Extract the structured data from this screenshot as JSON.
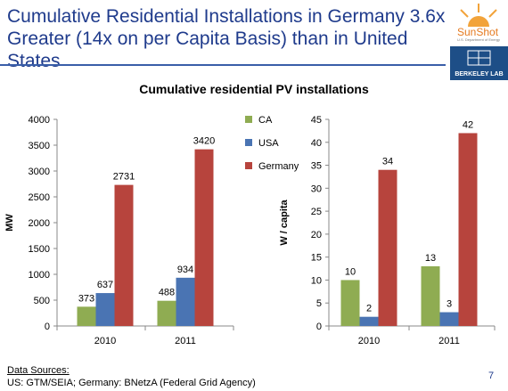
{
  "slide": {
    "title": "Cumulative Residential Installations in Germany 3.6x Greater (14x on per Capita Basis) than in United States",
    "logo_main": "SunShot",
    "logo_sub": "U.S. Department of Energy",
    "logo_lab": "BERKELEY LAB",
    "page_number": "7"
  },
  "chart_heading": "Cumulative residential PV installations",
  "sources": {
    "title": "Data Sources:",
    "text": "US: GTM/SEIA; Germany: BNetzA (Federal Grid Agency)"
  },
  "colors": {
    "CA": "#8fac52",
    "USA": "#4a74b3",
    "Germany": "#b7443d"
  },
  "chart_data": [
    {
      "type": "bar",
      "title": "Cumulative residential PV installations",
      "categories": [
        "2010",
        "2011"
      ],
      "series": [
        {
          "name": "CA",
          "values": [
            373,
            488
          ]
        },
        {
          "name": "USA",
          "values": [
            637,
            934
          ]
        },
        {
          "name": "Germany",
          "values": [
            2731,
            3420
          ]
        }
      ],
      "xlabel": "",
      "ylabel": "MW",
      "ylim": [
        0,
        4000
      ],
      "yticks": [
        0,
        500,
        1000,
        1500,
        2000,
        2500,
        3000,
        3500,
        4000
      ],
      "legend": "right",
      "grid": false
    },
    {
      "type": "bar",
      "categories": [
        "2010",
        "2011"
      ],
      "series": [
        {
          "name": "CA",
          "values": [
            10,
            13
          ]
        },
        {
          "name": "USA",
          "values": [
            2,
            3
          ]
        },
        {
          "name": "Germany",
          "values": [
            34,
            42
          ]
        }
      ],
      "xlabel": "",
      "ylabel": "W / capita",
      "ylim": [
        0,
        45
      ],
      "yticks": [
        0,
        5,
        10,
        15,
        20,
        25,
        30,
        35,
        40,
        45
      ],
      "grid": false
    }
  ]
}
